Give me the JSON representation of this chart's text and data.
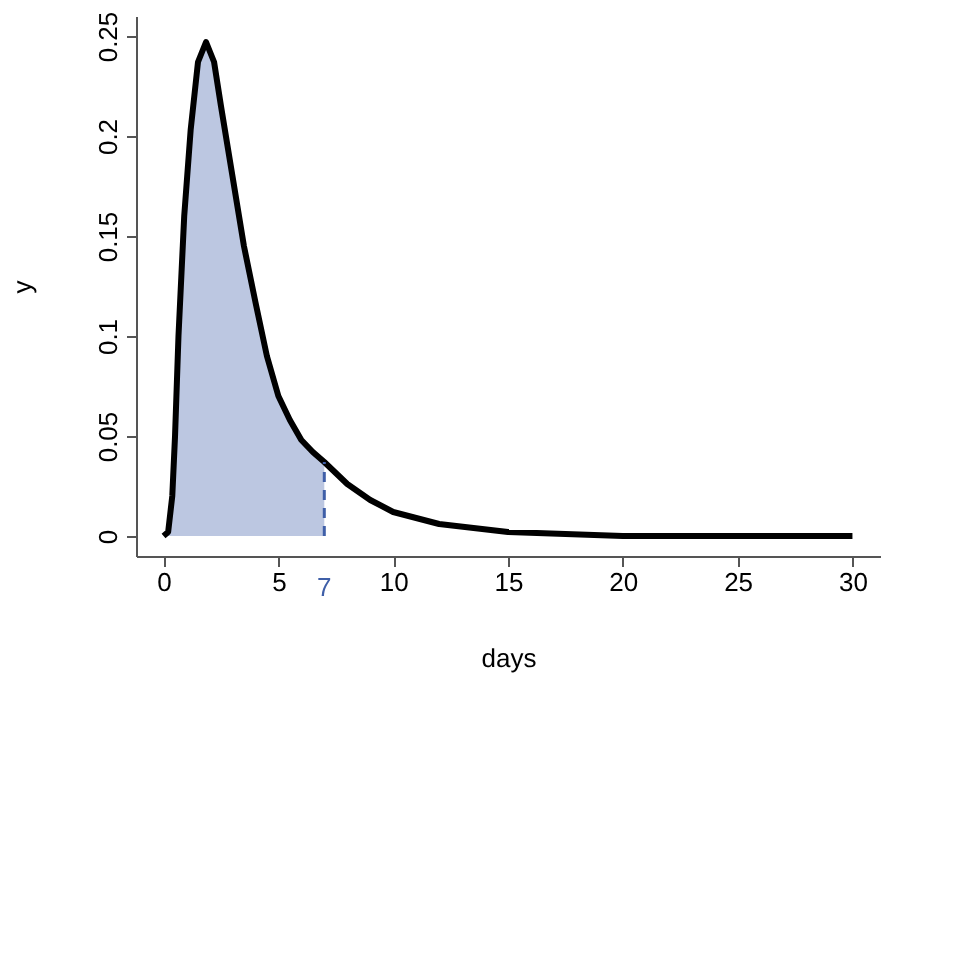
{
  "chart_data": {
    "type": "line",
    "xlabel": "days",
    "ylabel": "y",
    "xlim": [
      -1.2,
      31.2
    ],
    "ylim": [
      -0.01,
      0.26
    ],
    "xticks": [
      0,
      5,
      10,
      15,
      20,
      25,
      30
    ],
    "yticks": [
      0,
      0.05,
      0.1,
      0.15,
      0.2,
      0.25
    ],
    "grid": false,
    "series": [
      {
        "type": "area",
        "color": "#3f5fa8",
        "x": [
          0,
          0.2,
          0.38,
          0.5,
          0.65,
          0.9,
          1.18,
          1.5,
          1.85,
          2.2,
          2.5,
          3,
          3.5,
          4,
          4.5,
          5,
          5.5,
          6,
          6.5,
          7
        ],
        "values": [
          0,
          0.002,
          0.02,
          0.05,
          0.1,
          0.16,
          0.203,
          0.237,
          0.247,
          0.237,
          0.215,
          0.18,
          0.145,
          0.117,
          0.09,
          0.07,
          0.058,
          0.048,
          0.042,
          0.037
        ]
      },
      {
        "color": "#000000",
        "x": [
          0,
          0.2,
          0.38,
          0.5,
          0.65,
          0.9,
          1.18,
          1.5,
          1.85,
          2.2,
          2.5,
          3,
          3.5,
          4,
          4.5,
          5,
          5.5,
          6,
          6.5,
          7,
          8,
          9,
          10,
          12,
          15,
          20,
          25,
          30
        ],
        "values": [
          0,
          0.002,
          0.02,
          0.05,
          0.1,
          0.16,
          0.203,
          0.237,
          0.247,
          0.237,
          0.215,
          0.18,
          0.145,
          0.117,
          0.09,
          0.07,
          0.058,
          0.048,
          0.042,
          0.037,
          0.026,
          0.018,
          0.012,
          0.006,
          0.002,
          0,
          0,
          0
        ]
      }
    ],
    "ref_lines": [
      {
        "axis": "x",
        "value": 7,
        "label": "7",
        "color": "#3f5fa8",
        "line_style": "dashed"
      }
    ]
  }
}
